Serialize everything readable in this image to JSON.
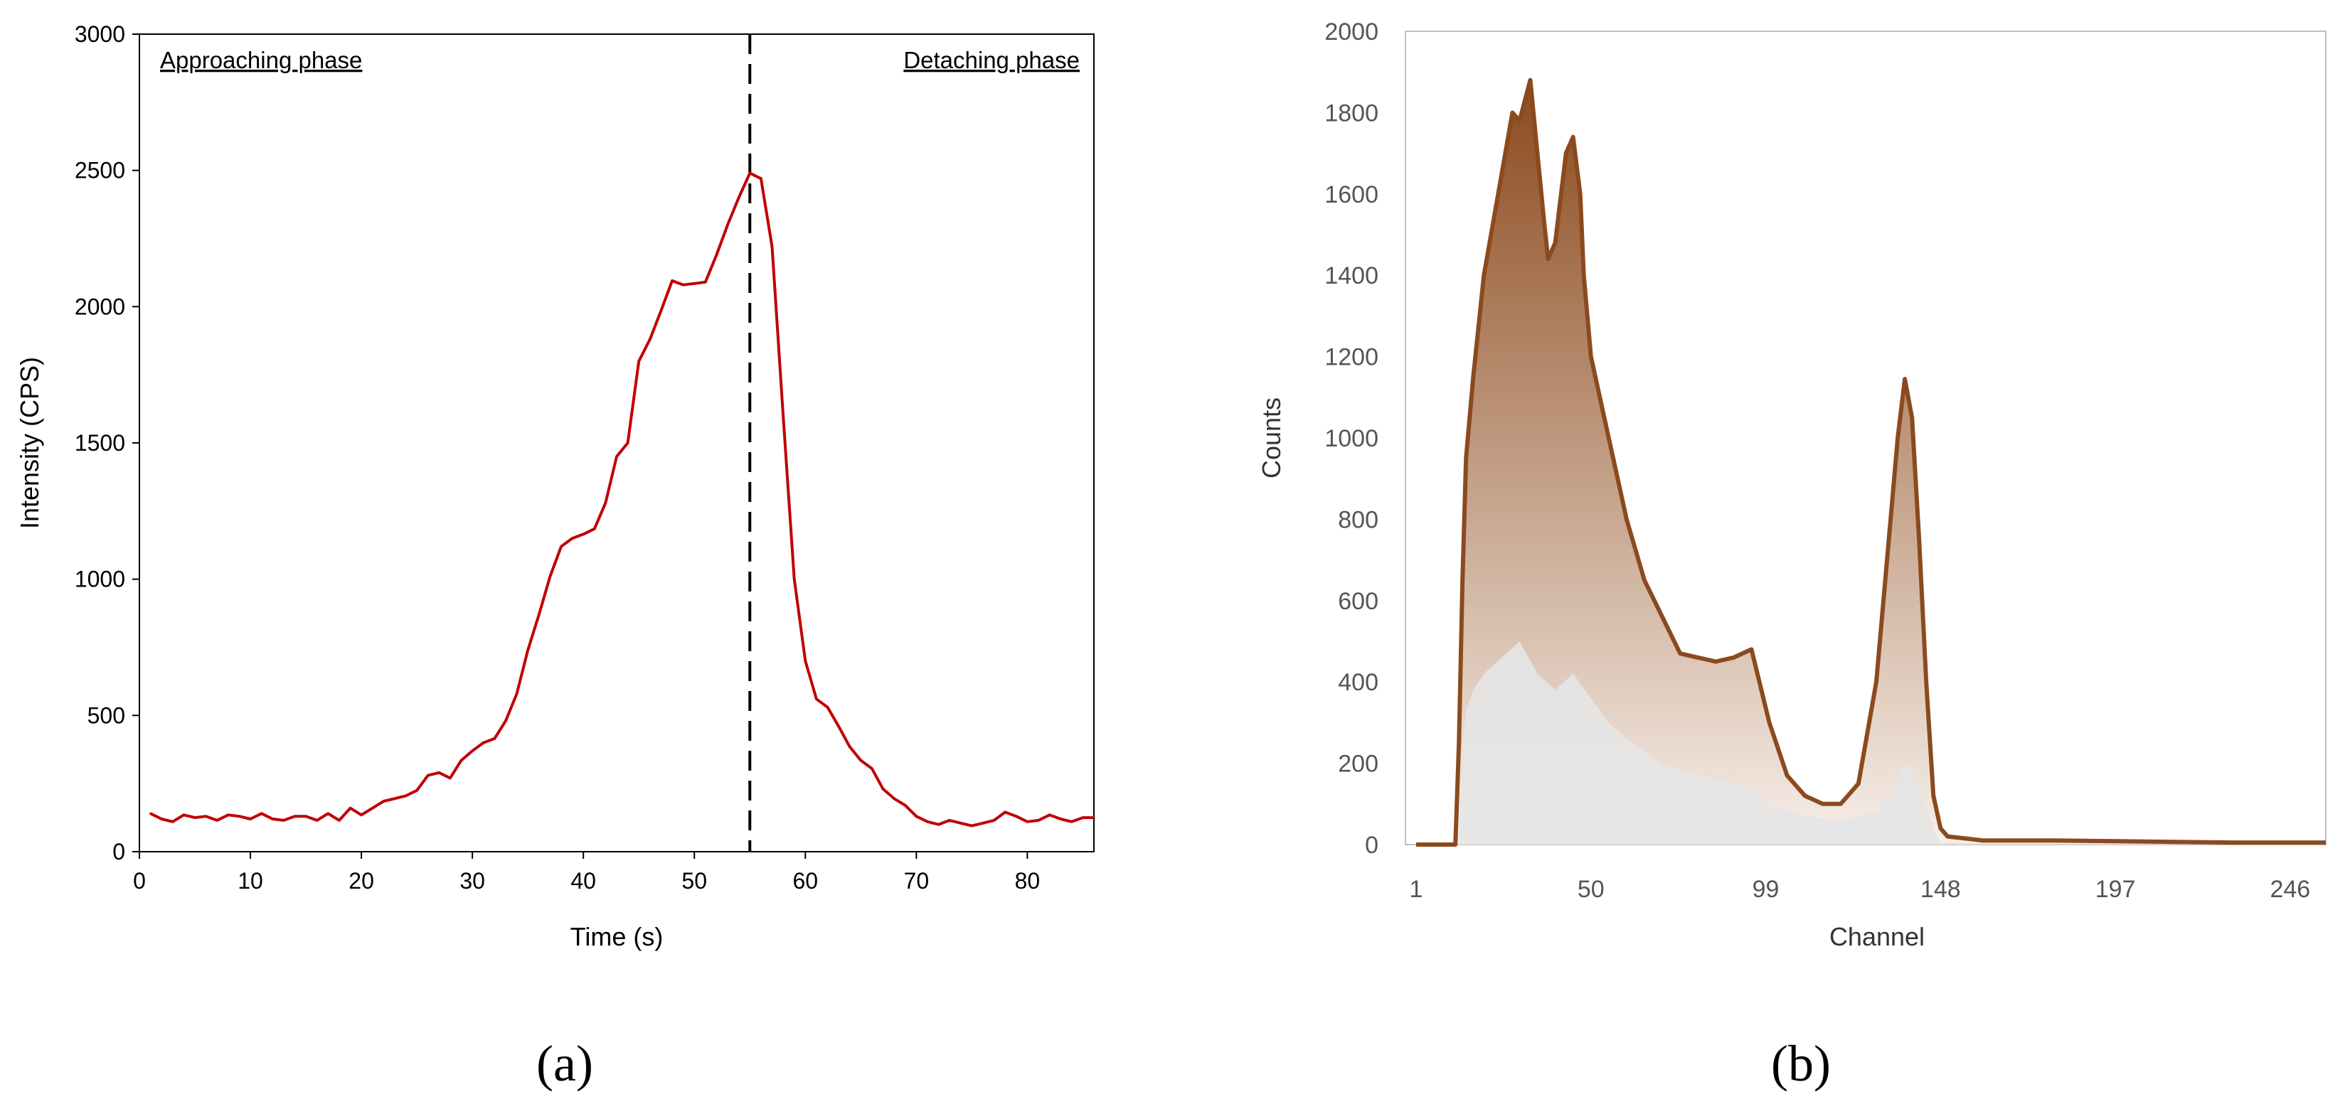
{
  "panel_labels": [
    "(a)",
    "(b)"
  ],
  "chart_data": [
    {
      "panel": "(a)",
      "type": "line",
      "title": "",
      "xlabel": "Time (s)",
      "ylabel": "Intensity (CPS)",
      "xlim": [
        0,
        86
      ],
      "ylim": [
        0,
        3000
      ],
      "xticks": [
        0,
        10,
        20,
        30,
        40,
        50,
        60,
        70,
        80
      ],
      "yticks": [
        0,
        500,
        1000,
        1500,
        2000,
        2500,
        3000
      ],
      "grid": false,
      "line_color": "#c00000",
      "annotations": {
        "left_phase": "Approaching phase",
        "right_phase": "Detaching phase",
        "divider_x": 55
      },
      "x": [
        1,
        2,
        3,
        4,
        5,
        6,
        7,
        8,
        9,
        10,
        11,
        12,
        13,
        14,
        15,
        16,
        17,
        18,
        19,
        20,
        21,
        22,
        23,
        24,
        25,
        26,
        27,
        28,
        29,
        30,
        31,
        32,
        33,
        34,
        35,
        36,
        37,
        38,
        39,
        40,
        41,
        42,
        43,
        44,
        45,
        46,
        47,
        48,
        49,
        50,
        51,
        52,
        53,
        54,
        55,
        56,
        57,
        58,
        59,
        60,
        61,
        62,
        63,
        64,
        65,
        66,
        67,
        68,
        69,
        70,
        71,
        72,
        73,
        74,
        75,
        76,
        77,
        78,
        79,
        80,
        81,
        82,
        83,
        84,
        85,
        86
      ],
      "y": [
        140,
        120,
        110,
        135,
        125,
        130,
        115,
        135,
        130,
        120,
        140,
        120,
        115,
        130,
        130,
        115,
        140,
        115,
        160,
        135,
        160,
        185,
        195,
        205,
        225,
        280,
        290,
        270,
        335,
        370,
        400,
        415,
        480,
        580,
        740,
        870,
        1010,
        1120,
        1150,
        1165,
        1185,
        1280,
        1450,
        1500,
        1800,
        1880,
        1985,
        2095,
        2080,
        2085,
        2090,
        2190,
        2300,
        2400,
        2490,
        2470,
        2220,
        1600,
        1000,
        700,
        560,
        530,
        460,
        385,
        335,
        305,
        230,
        195,
        170,
        130,
        110,
        100,
        115,
        105,
        95,
        105,
        115,
        145,
        130,
        110,
        115,
        135,
        120,
        110,
        125,
        125
      ]
    },
    {
      "panel": "(b)",
      "type": "area",
      "title": "",
      "xlabel": "Channel",
      "ylabel": "Counts",
      "ylim": [
        0,
        2000
      ],
      "xlim": [
        1,
        256
      ],
      "xticks": [
        1,
        50,
        99,
        148,
        197,
        246
      ],
      "yticks": [
        0,
        200,
        400,
        600,
        800,
        1000,
        1200,
        1400,
        1600,
        1800,
        2000
      ],
      "grid": false,
      "colors": {
        "outline": "#8b4a1e",
        "mid": "#e07b39",
        "fill_low": "#f2c4a6",
        "base": "#e6e6e6"
      },
      "envelope": {
        "x": [
          1,
          10,
          11,
          12,
          13,
          14,
          15,
          17,
          20,
          25,
          28,
          30,
          33,
          35,
          37,
          38,
          40,
          43,
          45,
          47,
          48,
          50,
          55,
          60,
          65,
          70,
          75,
          80,
          85,
          90,
          95,
          100,
          105,
          110,
          115,
          120,
          125,
          130,
          133,
          136,
          138,
          140,
          142,
          144,
          146,
          148,
          150,
          155,
          160,
          180,
          200,
          230,
          256
        ],
        "y": [
          0,
          0,
          0,
          0,
          250,
          650,
          950,
          1150,
          1400,
          1650,
          1800,
          1780,
          1880,
          1700,
          1520,
          1440,
          1480,
          1700,
          1740,
          1600,
          1400,
          1200,
          1000,
          800,
          650,
          560,
          470,
          460,
          450,
          460,
          480,
          300,
          170,
          120,
          100,
          100,
          150,
          400,
          700,
          1000,
          1145,
          1050,
          750,
          400,
          120,
          40,
          20,
          15,
          10,
          10,
          8,
          5,
          5
        ]
      },
      "inner": {
        "x": [
          1,
          13,
          14,
          15,
          17,
          20,
          25,
          30,
          35,
          40,
          45,
          50,
          55,
          60,
          70,
          80,
          90,
          95,
          100,
          110,
          120,
          130,
          136,
          138,
          140,
          142,
          146,
          148,
          256
        ],
        "y": [
          0,
          0,
          250,
          330,
          380,
          420,
          460,
          500,
          420,
          380,
          420,
          360,
          300,
          260,
          200,
          170,
          150,
          140,
          100,
          70,
          60,
          80,
          150,
          200,
          180,
          140,
          40,
          5,
          0
        ]
      }
    }
  ]
}
